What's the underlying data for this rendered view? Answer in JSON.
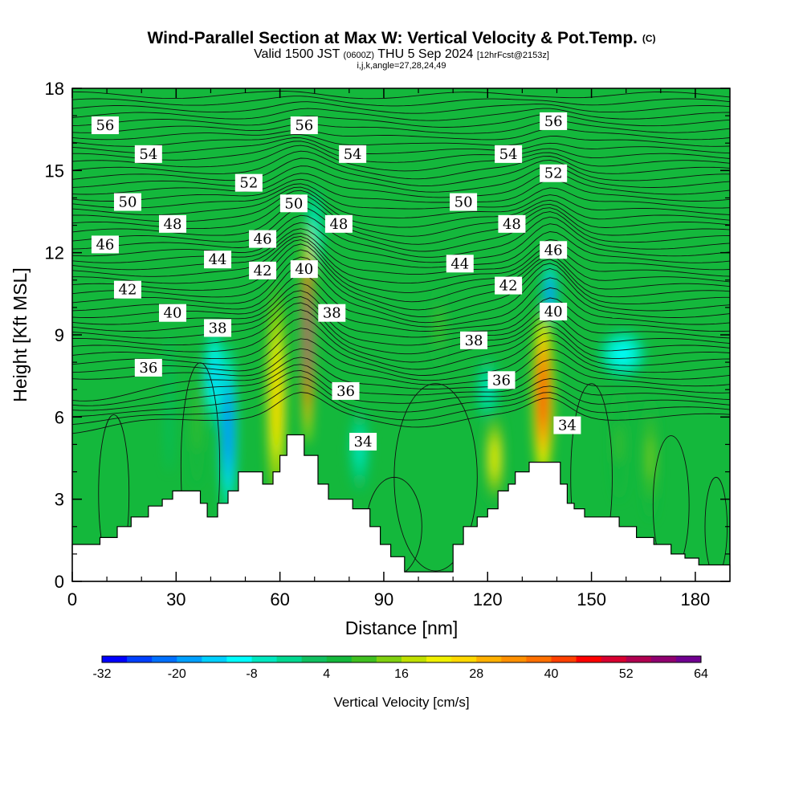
{
  "header": {
    "title_main": "Wind-Parallel Section at Max W: Vertical Velocity & Pot.Temp.",
    "title_mark": "(C)",
    "subtitle_a": "Valid 1500 JST",
    "subtitle_b": "(0600Z)",
    "subtitle_c": "THU 5 Sep 2024",
    "subtitle_d": "[12hrFcst@2153z]",
    "subsub": "i,j,k,angle=27,28,24,49"
  },
  "chart_data": {
    "type": "heatmap",
    "title": "Wind-Parallel Section at Max W: Vertical Velocity & Pot.Temp.",
    "xlabel": "Distance [nm]",
    "ylabel": "Height [Kft MSL]",
    "xlim": [
      0,
      190
    ],
    "ylim": [
      0,
      18
    ],
    "xticks": [
      0,
      30,
      60,
      90,
      120,
      150,
      180
    ],
    "xtick_labels": [
      "0",
      "30",
      "60",
      "90",
      "120",
      "150",
      "180"
    ],
    "yticks": [
      0,
      3,
      6,
      9,
      12,
      15,
      18
    ],
    "ytick_labels": [
      "0",
      "3",
      "6",
      "9",
      "12",
      "15",
      "18"
    ],
    "background_color": "#14b83c",
    "colorbar": {
      "title": "Vertical Velocity [cm/s]",
      "ticks": [
        -32,
        -20,
        -8,
        4,
        16,
        28,
        40,
        52,
        64
      ],
      "tick_labels": [
        "-32",
        "-20",
        "-8",
        "4",
        "16",
        "28",
        "40",
        "52",
        "64"
      ],
      "min": -32,
      "max": 64,
      "colors": [
        "#0000ff",
        "#0040ff",
        "#0070ff",
        "#00a0ff",
        "#00d0ff",
        "#00ffff",
        "#00e8c0",
        "#00d890",
        "#10c060",
        "#14b83c",
        "#40c020",
        "#80d010",
        "#c0e000",
        "#f0f000",
        "#ffd800",
        "#ffb000",
        "#ff9000",
        "#ff7000",
        "#ff4000",
        "#ff0000",
        "#d80030",
        "#b00050",
        "#900070",
        "#700090"
      ]
    },
    "terrain_profile": [
      [
        0,
        1.35
      ],
      [
        8,
        1.35
      ],
      [
        8,
        1.6
      ],
      [
        13,
        1.6
      ],
      [
        13,
        2.0
      ],
      [
        17,
        2.0
      ],
      [
        17,
        2.35
      ],
      [
        22,
        2.35
      ],
      [
        22,
        2.75
      ],
      [
        26,
        2.75
      ],
      [
        26,
        3.0
      ],
      [
        29,
        3.0
      ],
      [
        29,
        3.3
      ],
      [
        37,
        3.3
      ],
      [
        37,
        2.85
      ],
      [
        39,
        2.85
      ],
      [
        39,
        2.35
      ],
      [
        42,
        2.35
      ],
      [
        42,
        2.85
      ],
      [
        45,
        2.85
      ],
      [
        45,
        3.3
      ],
      [
        48,
        3.3
      ],
      [
        48,
        4.0
      ],
      [
        55,
        4.0
      ],
      [
        55,
        3.55
      ],
      [
        58,
        3.55
      ],
      [
        58,
        4.0
      ],
      [
        60,
        4.0
      ],
      [
        60,
        4.6
      ],
      [
        62,
        4.6
      ],
      [
        62,
        5.35
      ],
      [
        67,
        5.35
      ],
      [
        67,
        4.6
      ],
      [
        71,
        4.6
      ],
      [
        71,
        3.55
      ],
      [
        74,
        3.55
      ],
      [
        74,
        3.0
      ],
      [
        81,
        3.0
      ],
      [
        81,
        2.65
      ],
      [
        86,
        2.65
      ],
      [
        86,
        2.0
      ],
      [
        89,
        2.0
      ],
      [
        89,
        1.35
      ],
      [
        92,
        1.35
      ],
      [
        92,
        0.9
      ],
      [
        96,
        0.9
      ],
      [
        96,
        0.35
      ],
      [
        110,
        0.35
      ],
      [
        110,
        1.35
      ],
      [
        113,
        1.35
      ],
      [
        113,
        2.0
      ],
      [
        117,
        2.0
      ],
      [
        117,
        2.35
      ],
      [
        120,
        2.35
      ],
      [
        120,
        2.65
      ],
      [
        123,
        2.65
      ],
      [
        123,
        3.3
      ],
      [
        126,
        3.3
      ],
      [
        126,
        3.55
      ],
      [
        128,
        3.55
      ],
      [
        128,
        4.0
      ],
      [
        132,
        4.0
      ],
      [
        132,
        4.35
      ],
      [
        141,
        4.35
      ],
      [
        141,
        3.55
      ],
      [
        143,
        3.55
      ],
      [
        143,
        2.85
      ],
      [
        145,
        2.85
      ],
      [
        145,
        2.65
      ],
      [
        148,
        2.65
      ],
      [
        148,
        2.35
      ],
      [
        158,
        2.35
      ],
      [
        158,
        2.0
      ],
      [
        163,
        2.0
      ],
      [
        163,
        1.6
      ],
      [
        168,
        1.6
      ],
      [
        168,
        1.35
      ],
      [
        173,
        1.35
      ],
      [
        173,
        1.0
      ],
      [
        177,
        1.0
      ],
      [
        177,
        0.85
      ],
      [
        181,
        0.85
      ],
      [
        181,
        0.6
      ],
      [
        190,
        0.6
      ]
    ],
    "vertical_velocity_features": [
      {
        "x": 45,
        "y": 5.5,
        "rx": 2.5,
        "ry": 3.2,
        "w": -24
      },
      {
        "x": 41,
        "y": 7.5,
        "rx": 3.0,
        "ry": 2.0,
        "w": -14
      },
      {
        "x": 70,
        "y": 12.8,
        "rx": 2.5,
        "ry": 1.6,
        "w": -8
      },
      {
        "x": 138,
        "y": 10.5,
        "rx": 2.0,
        "ry": 1.2,
        "w": -24
      },
      {
        "x": 159,
        "y": 8.3,
        "rx": 7.0,
        "ry": 0.9,
        "w": -10
      },
      {
        "x": 120,
        "y": 7.0,
        "rx": 3.5,
        "ry": 1.2,
        "w": -6
      },
      {
        "x": 83,
        "y": 4.8,
        "rx": 3.0,
        "ry": 1.5,
        "w": -6
      },
      {
        "x": 59,
        "y": 6.7,
        "rx": 3.0,
        "ry": 4.2,
        "w": 24
      },
      {
        "x": 68,
        "y": 9.0,
        "rx": 1.6,
        "ry": 4.0,
        "w": 64
      },
      {
        "x": 136,
        "y": 6.8,
        "rx": 3.0,
        "ry": 3.2,
        "w": 46
      },
      {
        "x": 122,
        "y": 4.5,
        "rx": 2.8,
        "ry": 1.8,
        "w": 22
      },
      {
        "x": 167,
        "y": 4.5,
        "rx": 2.0,
        "ry": 2.2,
        "w": 12
      },
      {
        "x": 158,
        "y": 5.0,
        "rx": 2.0,
        "ry": 2.0,
        "w": 8
      },
      {
        "x": 106,
        "y": 9.3,
        "rx": 2.0,
        "ry": 1.5,
        "w": 10
      },
      {
        "x": 36,
        "y": 6.0,
        "rx": 1.4,
        "ry": 2.5,
        "w": 10
      },
      {
        "x": 28,
        "y": 6.5,
        "rx": 1.0,
        "ry": 2.5,
        "w": 2
      }
    ],
    "theta_contour_labels": [
      {
        "value": "56",
        "x": 9.5,
        "y": 16.65
      },
      {
        "value": "56",
        "x": 67,
        "y": 16.65
      },
      {
        "value": "56",
        "x": 139,
        "y": 16.8
      },
      {
        "value": "54",
        "x": 22,
        "y": 15.6
      },
      {
        "value": "54",
        "x": 81,
        "y": 15.6
      },
      {
        "value": "54",
        "x": 126,
        "y": 15.6
      },
      {
        "value": "52",
        "x": 51,
        "y": 14.55
      },
      {
        "value": "52",
        "x": 139,
        "y": 14.9
      },
      {
        "value": "50",
        "x": 16,
        "y": 13.85
      },
      {
        "value": "50",
        "x": 64,
        "y": 13.8
      },
      {
        "value": "50",
        "x": 113,
        "y": 13.85
      },
      {
        "value": "48",
        "x": 29,
        "y": 13.05
      },
      {
        "value": "48",
        "x": 77,
        "y": 13.05
      },
      {
        "value": "48",
        "x": 127,
        "y": 13.05
      },
      {
        "value": "46",
        "x": 9.5,
        "y": 12.3
      },
      {
        "value": "46",
        "x": 55,
        "y": 12.5
      },
      {
        "value": "46",
        "x": 139,
        "y": 12.1
      },
      {
        "value": "44",
        "x": 42,
        "y": 11.75
      },
      {
        "value": "44",
        "x": 112,
        "y": 11.6
      },
      {
        "value": "42",
        "x": 55,
        "y": 11.35
      },
      {
        "value": "42",
        "x": 16,
        "y": 10.65
      },
      {
        "value": "42",
        "x": 126,
        "y": 10.8
      },
      {
        "value": "40",
        "x": 67,
        "y": 11.4
      },
      {
        "value": "40",
        "x": 29,
        "y": 9.8
      },
      {
        "value": "40",
        "x": 139,
        "y": 9.85
      },
      {
        "value": "38",
        "x": 42,
        "y": 9.25
      },
      {
        "value": "38",
        "x": 75,
        "y": 9.8
      },
      {
        "value": "38",
        "x": 116,
        "y": 8.8
      },
      {
        "value": "36",
        "x": 22,
        "y": 7.8
      },
      {
        "value": "36",
        "x": 79,
        "y": 6.95
      },
      {
        "value": "36",
        "x": 124,
        "y": 7.35
      },
      {
        "value": "34",
        "x": 84,
        "y": 5.1
      },
      {
        "value": "34",
        "x": 143,
        "y": 5.7
      }
    ]
  }
}
